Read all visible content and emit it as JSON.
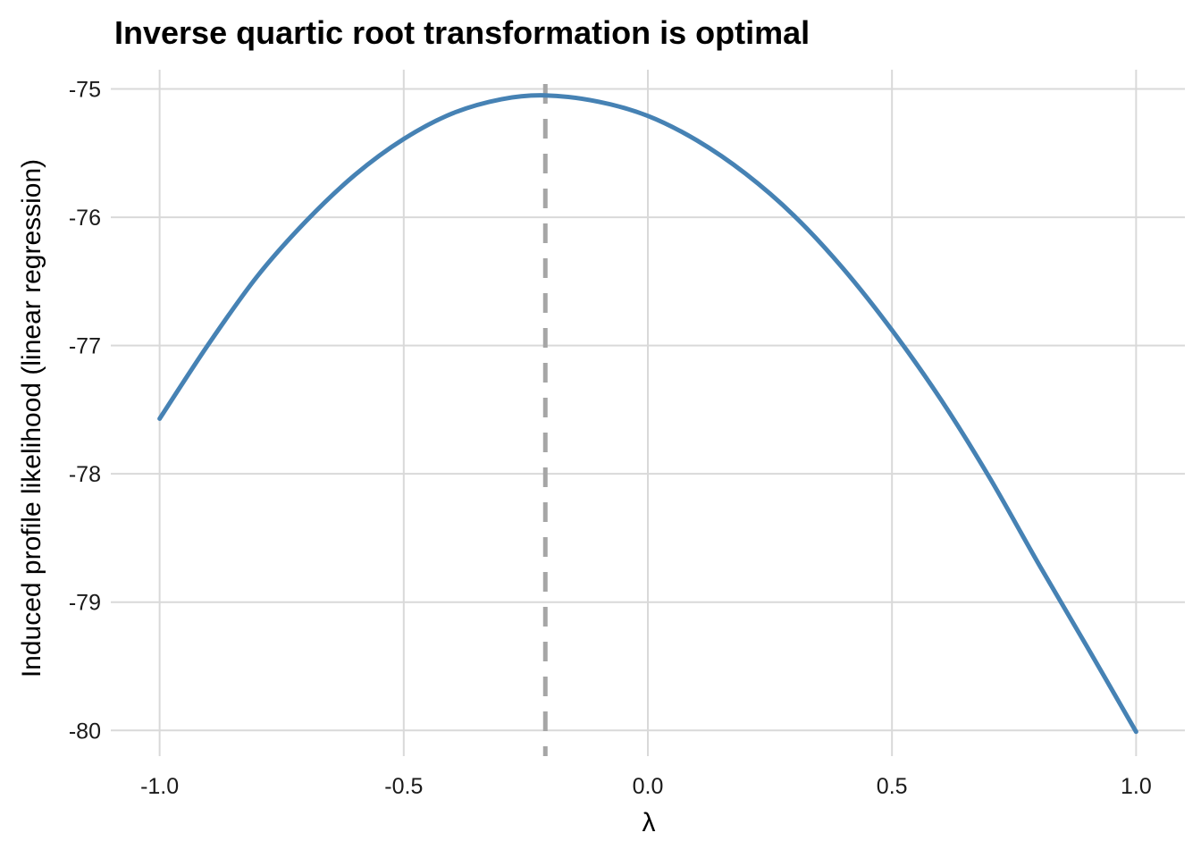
{
  "chart_data": {
    "type": "line",
    "title": "Inverse quartic root transformation is optimal",
    "xlabel": "λ",
    "ylabel": "Induced profile likelihood (linear regression)",
    "xlim": [
      -1.1,
      1.1
    ],
    "ylim": [
      -80.2,
      -74.85
    ],
    "x_ticks": [
      -1.0,
      -0.5,
      0.0,
      0.5,
      1.0
    ],
    "x_tick_labels": [
      "-1.0",
      "-0.5",
      "0.0",
      "0.5",
      "1.0"
    ],
    "y_ticks": [
      -80,
      -79,
      -78,
      -77,
      -76,
      -75
    ],
    "y_tick_labels": [
      "-80",
      "-79",
      "-78",
      "-77",
      "-76",
      "-75"
    ],
    "grid": true,
    "legend": "none",
    "series": [
      {
        "color": "#4682b4",
        "x": [
          -1.0,
          -0.9,
          -0.8,
          -0.7,
          -0.6,
          -0.5,
          -0.4,
          -0.3,
          -0.21,
          -0.1,
          0.0,
          0.1,
          0.2,
          0.3,
          0.4,
          0.5,
          0.6,
          0.7,
          0.8,
          0.9,
          1.0
        ],
        "y": [
          -77.57,
          -76.99,
          -76.46,
          -76.03,
          -75.67,
          -75.39,
          -75.19,
          -75.08,
          -75.05,
          -75.1,
          -75.21,
          -75.4,
          -75.66,
          -75.99,
          -76.4,
          -76.88,
          -77.42,
          -78.03,
          -78.7,
          -79.35,
          -80.01
        ]
      }
    ],
    "reference_line": {
      "x": -0.21,
      "style": "dashed",
      "color": "#a6a6a6"
    }
  }
}
